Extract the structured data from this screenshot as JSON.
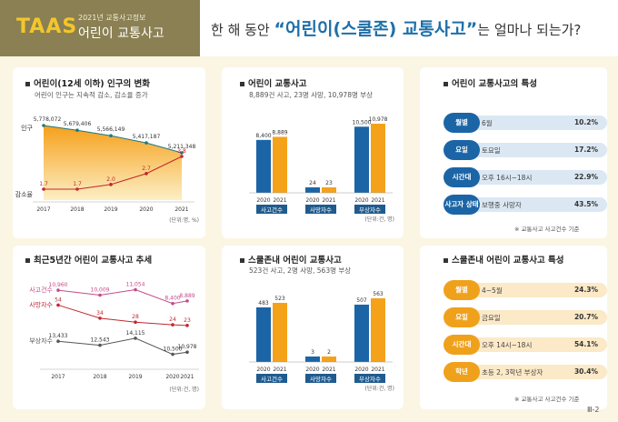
{
  "header": {
    "logo": "TAAS",
    "subtitle": "2021년 교통사고정보",
    "title": "어린이 교통사고",
    "headline_pre": "한 해 동안",
    "headline_highlight": "“어린이(스쿨존) 교통사고”",
    "headline_post": "는 얼마나 되는가?"
  },
  "sections": {
    "population": {
      "title": "어린이(12세 이하) 인구의 변화",
      "sub": "어린이 인구는 지속적 감소, 감소율 증가"
    },
    "accidents": {
      "title": "어린이 교통사고",
      "sub": "8,889건 사고, 23명 사망, 10,978명 부상"
    },
    "features": {
      "title": "어린이 교통사고의 특성",
      "note": "※ 교통사고 사고건수 기준"
    },
    "trend": {
      "title": "최근5년간 어린이 교통사고 추세"
    },
    "schoolzone": {
      "title": "스쿨존내 어린이 교통사고",
      "sub": "523건 사고, 2명 사망, 563명 부상"
    },
    "sz_features": {
      "title": "스쿨존내 어린이 교통사고 특성",
      "note": "※ 교통사고 사고건수 기준"
    }
  },
  "features": [
    {
      "label": "월별",
      "value": "6월",
      "pct": "10.2%"
    },
    {
      "label": "요일",
      "value": "토요일",
      "pct": "17.2%"
    },
    {
      "label": "시간대",
      "value": "오후 16시~18시",
      "pct": "22.9%"
    },
    {
      "label": "사고자 상태",
      "value": "보행중 사망자",
      "pct": "43.5%"
    }
  ],
  "sz_features": [
    {
      "label": "월별",
      "value": "4~5월",
      "pct": "24.3%"
    },
    {
      "label": "요일",
      "value": "금요일",
      "pct": "20.7%"
    },
    {
      "label": "시간대",
      "value": "오후 14시~18시",
      "pct": "54.1%"
    },
    {
      "label": "학년",
      "value": "초등 2, 3학년 부상자",
      "pct": "30.4%"
    }
  ],
  "colors": {
    "blue": "#1b65a6",
    "orange": "#f5a21b",
    "red": "#c0282e",
    "pink": "#c44b8a",
    "gray": "#555555",
    "teal": "#1a7a82",
    "pill_blue": "#1b65a6",
    "pill_orange": "#f0a11c",
    "bar_blue": "#dbe8f3",
    "bar_orange": "#fbe9c7"
  },
  "page_no": "Ⅲ-2",
  "chart_data": [
    {
      "type": "line",
      "id": "population",
      "x": [
        "2017",
        "2018",
        "2019",
        "2020",
        "2021"
      ],
      "series": [
        {
          "name": "인구",
          "values": [
            5778072,
            5679406,
            5566149,
            5417187,
            5211348
          ],
          "labels": [
            "5,778,072",
            "5,679,406",
            "5,566,149",
            "5,417,187",
            "5,211,348"
          ]
        },
        {
          "name": "감소율",
          "values": [
            1.7,
            1.7,
            2.0,
            2.7,
            3.8
          ],
          "labels": [
            "1.7",
            "1.7",
            "2.0",
            "2.7",
            "3.8"
          ]
        }
      ],
      "unit": "(단위:명, %)"
    },
    {
      "type": "bar",
      "id": "accidents",
      "groups": [
        {
          "name": "사고건수",
          "categories": [
            "2020",
            "2021"
          ],
          "values": [
            8400,
            8889
          ],
          "labels": [
            "8,400",
            "8,889"
          ]
        },
        {
          "name": "사망자수",
          "categories": [
            "2020",
            "2021"
          ],
          "values": [
            24,
            23
          ],
          "labels": [
            "24",
            "23"
          ]
        },
        {
          "name": "부상자수",
          "categories": [
            "2020",
            "2021"
          ],
          "values": [
            10500,
            10978
          ],
          "labels": [
            "10,500",
            "10,978"
          ]
        }
      ],
      "unit": "(단위:건, 명)"
    },
    {
      "type": "line",
      "id": "trend",
      "x": [
        "2017",
        "2018",
        "2019",
        "2020",
        "2021"
      ],
      "series": [
        {
          "name": "사고건수",
          "values": [
            10960,
            10009,
            11054,
            8400,
            8889
          ],
          "labels": [
            "10,960",
            "10,009",
            "11,054",
            "8,400",
            "8,889"
          ]
        },
        {
          "name": "사망자수",
          "values": [
            54,
            34,
            28,
            24,
            23
          ],
          "labels": [
            "54",
            "34",
            "28",
            "24",
            "23"
          ]
        },
        {
          "name": "부상자수",
          "values": [
            13433,
            12543,
            14115,
            10500,
            10978
          ],
          "labels": [
            "13,433",
            "12,543",
            "14,115",
            "10,500",
            "10,978"
          ]
        }
      ],
      "unit": "(단위:건, 명)"
    },
    {
      "type": "bar",
      "id": "schoolzone",
      "groups": [
        {
          "name": "사고건수",
          "categories": [
            "2020",
            "2021"
          ],
          "values": [
            483,
            523
          ],
          "labels": [
            "483",
            "523"
          ]
        },
        {
          "name": "사망자수",
          "categories": [
            "2020",
            "2021"
          ],
          "values": [
            3,
            2
          ],
          "labels": [
            "3",
            "2"
          ]
        },
        {
          "name": "부상자수",
          "categories": [
            "2020",
            "2021"
          ],
          "values": [
            507,
            563
          ],
          "labels": [
            "507",
            "563"
          ]
        }
      ],
      "unit": "(단위:건, 명)"
    }
  ]
}
